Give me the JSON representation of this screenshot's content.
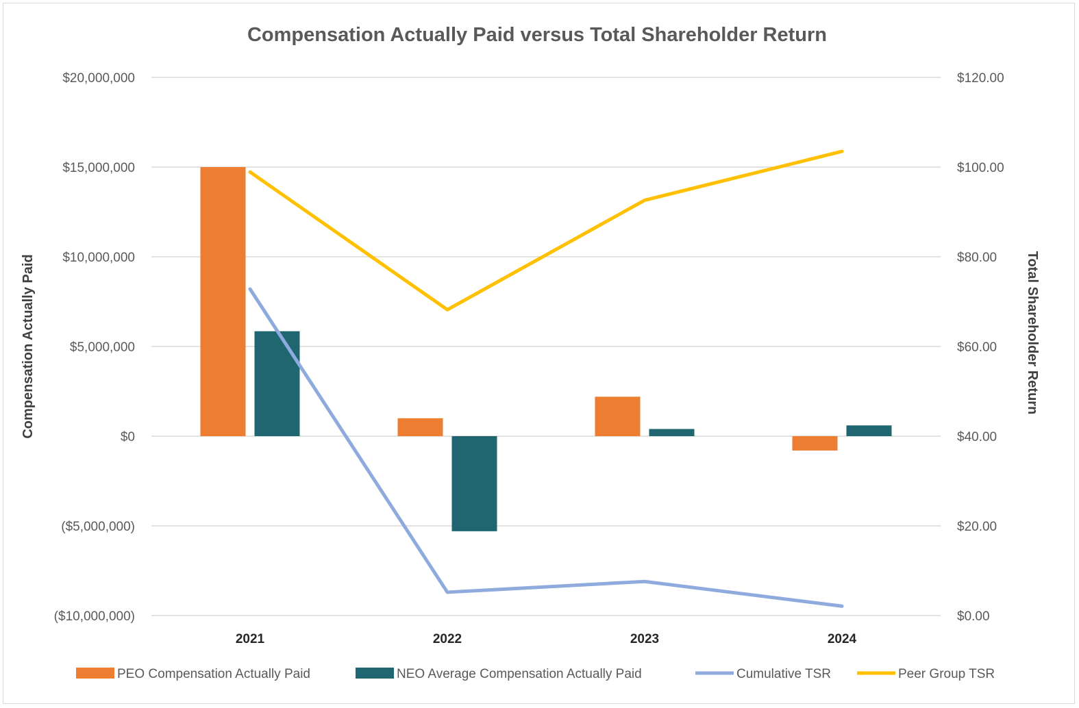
{
  "chart_data": {
    "type": "bar",
    "title": "Compensation Actually Paid versus Total Shareholder Return",
    "categories": [
      "2021",
      "2022",
      "2023",
      "2024"
    ],
    "ylabel": "Compensation Actually Paid",
    "y2label": "Total Shareholder Return",
    "ylim": [
      -10000000,
      20000000
    ],
    "y2lim": [
      0,
      120
    ],
    "yticks": [
      "$20,000,000",
      "$15,000,000",
      "$10,000,000",
      "$5,000,000",
      "$0",
      "($5,000,000)",
      "($10,000,000)"
    ],
    "y2ticks": [
      "$120.00",
      "$100.00",
      "$80.00",
      "$60.00",
      "$40.00",
      "$20.00",
      "$0.00"
    ],
    "grid": true,
    "legend_position": "bottom",
    "series": [
      {
        "name": "PEO Compensation Actually Paid",
        "type": "bar",
        "axis": "left",
        "color": "#ED7D31",
        "values": [
          15000000,
          1000000,
          2200000,
          -800000
        ]
      },
      {
        "name": "NEO Average Compensation Actually Paid",
        "type": "bar",
        "axis": "left",
        "color": "#1F6670",
        "values": [
          5850000,
          -5300000,
          400000,
          600000
        ]
      },
      {
        "name": "Cumulative TSR",
        "type": "line",
        "axis": "right",
        "color": "#8FAADC",
        "values": [
          72.8,
          5.2,
          7.6,
          2.1
        ]
      },
      {
        "name": "Peer Group TSR",
        "type": "line",
        "axis": "right",
        "color": "#FFC000",
        "values": [
          98.9,
          68.2,
          92.6,
          103.5
        ]
      }
    ]
  }
}
